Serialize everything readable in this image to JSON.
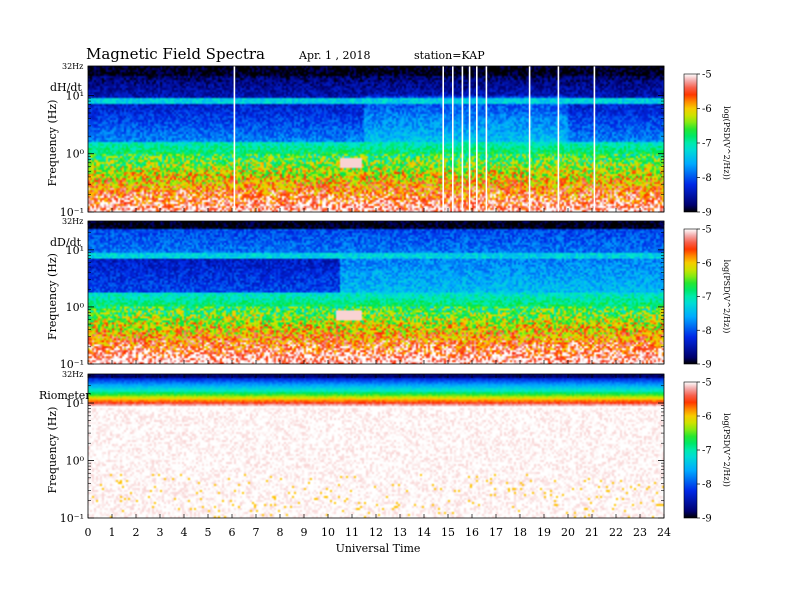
{
  "header": {
    "title": "Magnetic  Field  Spectra",
    "date": "Apr. 1  , 2018",
    "station": "station=KAP"
  },
  "chart_data": [
    {
      "type": "heatmap",
      "name": "dH/dt",
      "ylabel": "Frequency  (Hz)",
      "top_label": "32Hz",
      "y_scale": "log",
      "y_ticks": [
        "10⁻¹",
        "10⁰",
        "10¹"
      ],
      "y_tick_values": [
        0.1,
        1,
        10
      ],
      "ylim": [
        0.1,
        32
      ],
      "x_range": [
        0,
        24
      ],
      "colorbar": {
        "label": "log(PSD(V^2/Hz))",
        "ticks": [
          "-5",
          "-6",
          "-7",
          "-8",
          "-9"
        ],
        "range": [
          -9,
          -5
        ]
      },
      "features": {
        "line_hz": 8,
        "event_ut": [
          10.5,
          11.4
        ],
        "event_hz": 0.7,
        "gap_times_ut": [
          6.1,
          14.8,
          15.2,
          15.6,
          15.9,
          16.2,
          16.6,
          18.4,
          19.6,
          21.1
        ]
      }
    },
    {
      "type": "heatmap",
      "name": "dD/dt",
      "ylabel": "Frequency  (Hz)",
      "top_label": "32Hz",
      "y_scale": "log",
      "y_ticks": [
        "10⁻¹",
        "10⁰",
        "10¹"
      ],
      "y_tick_values": [
        0.1,
        1,
        10
      ],
      "ylim": [
        0.1,
        32
      ],
      "x_range": [
        0,
        24
      ],
      "colorbar": {
        "label": "log(PSD(V^2/Hz))",
        "ticks": [
          "-5",
          "-6",
          "-7",
          "-8",
          "-9"
        ],
        "range": [
          -9,
          -5
        ]
      },
      "features": {
        "line_hz": 8,
        "event_ut": [
          10.3,
          11.4
        ],
        "event_hz": 0.7
      }
    },
    {
      "type": "heatmap",
      "name": "Riometer",
      "ylabel": "Frequency  (Hz)",
      "top_label": "32Hz",
      "y_scale": "log",
      "y_ticks": [
        "10⁻¹",
        "10⁰",
        "10¹"
      ],
      "y_tick_values": [
        0.1,
        1,
        10
      ],
      "ylim": [
        0.1,
        32
      ],
      "x_range": [
        0,
        24
      ],
      "colorbar": {
        "label": "log(PSD(V^2/Hz))",
        "ticks": [
          "-5",
          "-6",
          "-7",
          "-8",
          "-9"
        ],
        "range": [
          -9,
          -5
        ]
      }
    }
  ],
  "x_axis": {
    "label": "Universal  Time",
    "ticks": [
      "0",
      "1",
      "2",
      "3",
      "4",
      "5",
      "6",
      "7",
      "8",
      "9",
      "10",
      "11",
      "12",
      "13",
      "14",
      "15",
      "16",
      "17",
      "18",
      "19",
      "20",
      "21",
      "22",
      "23",
      "24"
    ]
  }
}
